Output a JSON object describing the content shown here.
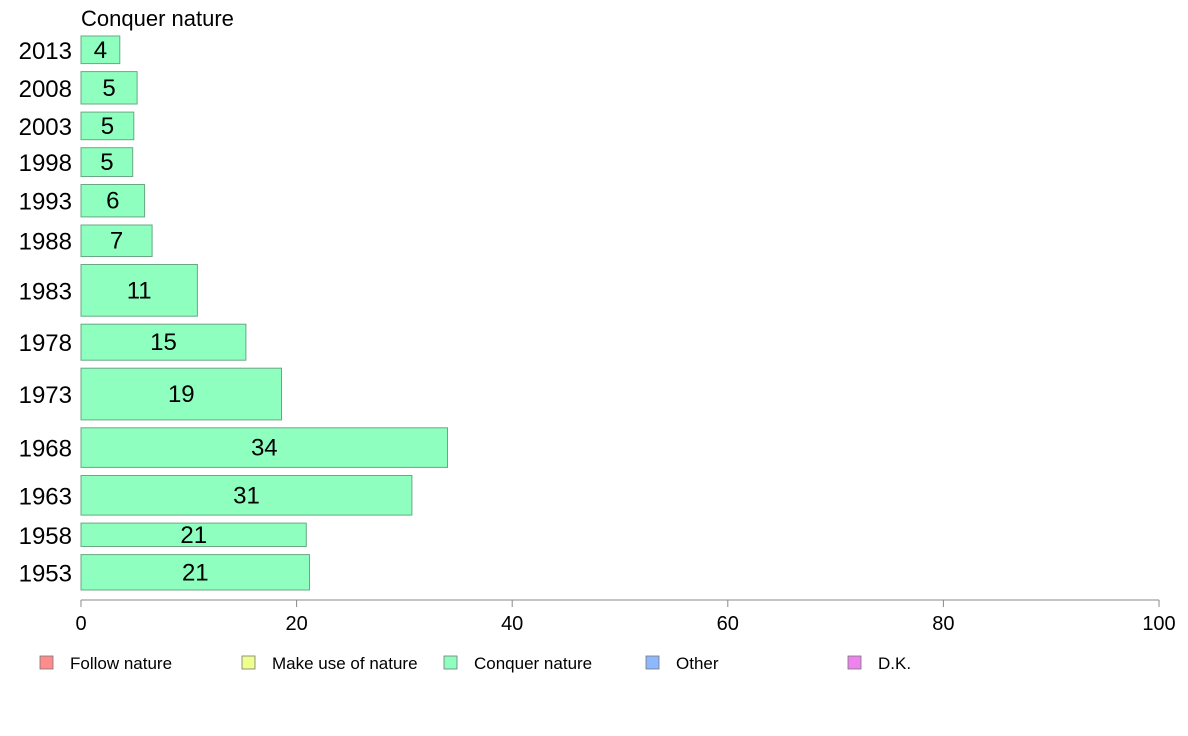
{
  "chart_data": {
    "type": "bar",
    "orientation": "horizontal",
    "title": "Conquer nature",
    "categories": [
      "2013",
      "2008",
      "2003",
      "1998",
      "1993",
      "1988",
      "1983",
      "1978",
      "1973",
      "1968",
      "1963",
      "1958",
      "1953"
    ],
    "values": [
      4,
      5,
      5,
      5,
      6,
      7,
      11,
      15,
      19,
      34,
      31,
      21,
      21
    ],
    "exact_values": [
      3.6,
      5.2,
      4.9,
      4.8,
      5.9,
      6.6,
      10.8,
      15.3,
      18.6,
      34.0,
      30.7,
      20.9,
      21.2
    ],
    "relative_sample_sizes": [
      0.92,
      1.08,
      0.92,
      0.96,
      1.08,
      1.05,
      1.72,
      1.2,
      1.72,
      1.32,
      1.32,
      0.78,
      1.18
    ],
    "bar_color": "#8effbf",
    "xlim": [
      0,
      100
    ],
    "xticks": [
      0,
      20,
      40,
      60,
      80,
      100
    ],
    "legend_position": "bottom",
    "legend": [
      {
        "label": "Follow nature",
        "color": "#ff8c8c"
      },
      {
        "label": "Make use of nature",
        "color": "#efff8e"
      },
      {
        "label": "Conquer nature",
        "color": "#8effbf"
      },
      {
        "label": "Other",
        "color": "#8cb8ff"
      },
      {
        "label": "D.K.",
        "color": "#ee82ee"
      }
    ]
  }
}
